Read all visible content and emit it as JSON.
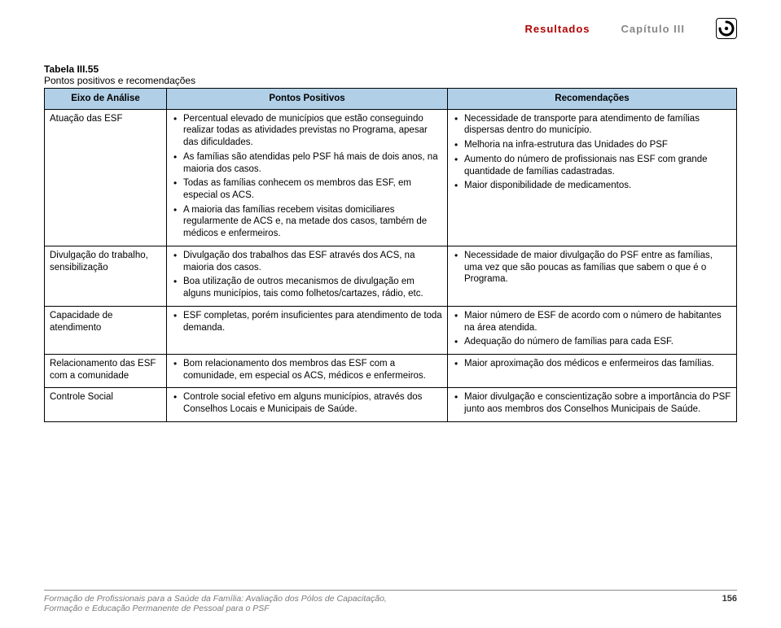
{
  "header": {
    "results_label": "Resultados",
    "chapter_label": "Capítulo III"
  },
  "caption": {
    "line1": "Tabela III.55",
    "line2": "Pontos positivos e recomendações"
  },
  "columns": {
    "c1": "Eixo de Análise",
    "c2": "Pontos Positivos",
    "c3": "Recomendações"
  },
  "rows": [
    {
      "axis": "Atuação das ESF",
      "positives": [
        "Percentual elevado de municípios que estão conseguindo realizar todas as atividades previstas no Programa, apesar das dificuldades.",
        "As famílias são atendidas pelo PSF há mais de dois anos, na maioria dos casos.",
        "Todas as famílias conhecem os membros das ESF, em especial os ACS.",
        "A maioria das famílias recebem visitas domiciliares regularmente de ACS e, na metade dos casos, também de médicos e enfermeiros."
      ],
      "recs": [
        "Necessidade de transporte para atendimento de famílias dispersas dentro do município.",
        "Melhoria na infra-estrutura das Unidades do PSF",
        "Aumento do número de profissionais nas ESF com grande quantidade de famílias cadastradas.",
        "Maior disponibilidade de medicamentos."
      ]
    },
    {
      "axis": "Divulgação do trabalho, sensibilização",
      "positives": [
        "Divulgação dos trabalhos das ESF através dos ACS, na maioria dos casos.",
        "Boa utilização de outros mecanismos de divulgação em alguns municípios, tais como folhetos/cartazes, rádio, etc."
      ],
      "recs": [
        "Necessidade de maior divulgação do PSF entre as famílias, uma vez que são poucas as famílias que sabem o que é o Programa."
      ]
    },
    {
      "axis": "Capacidade de atendimento",
      "positives": [
        "ESF completas, porém insuficientes para atendimento de toda demanda."
      ],
      "recs": [
        "Maior número de ESF de acordo com o número de habitantes na área atendida.",
        "Adequação do número de famílias para cada ESF."
      ]
    },
    {
      "axis": "Relacionamento das ESF com a comunidade",
      "positives": [
        "Bom relacionamento dos membros das ESF com a comunidade, em especial os ACS, médicos e enfermeiros."
      ],
      "recs": [
        "Maior aproximação dos médicos e enfermeiros das famílias."
      ]
    },
    {
      "axis": "Controle Social",
      "positives": [
        "Controle social efetivo em alguns municípios, através dos Conselhos Locais e Municipais de Saúde."
      ],
      "recs": [
        "Maior divulgação e conscientização sobre a importância do PSF junto aos membros dos Conselhos Municipais de Saúde."
      ]
    }
  ],
  "footer": {
    "line1": "Formação de Profissionais para a Saúde da Família: Avaliação dos Pólos de Capacitação,",
    "line2": "Formação e Educação Permanente de Pessoal para o PSF",
    "page": "156"
  },
  "colors": {
    "header_results": "#b00000",
    "header_chapter": "#888888",
    "th_bg": "#b1d0e8",
    "border": "#000000",
    "footer_text": "#7a7a7a"
  }
}
